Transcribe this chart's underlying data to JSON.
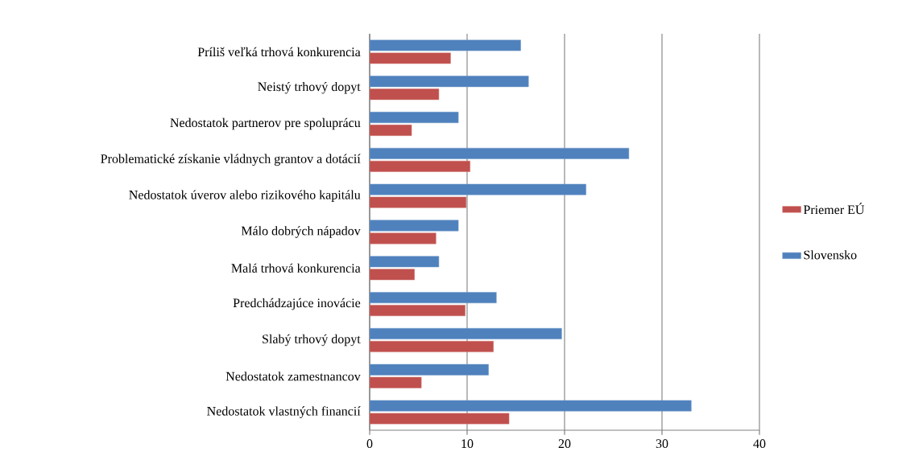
{
  "chart_data": {
    "type": "bar",
    "orientation": "horizontal",
    "categories": [
      "Príliš veľká trhová konkurencia",
      "Neistý trhový dopyt",
      "Nedostatok partnerov pre spoluprácu",
      "Problematické získanie vládnych grantov a dotácií",
      "Nedostatok úverov alebo rizikového kapitálu",
      "Málo dobrých nápadov",
      "Malá trhová konkurencia",
      "Predchádzajúce inovácie",
      "Slabý trhový dopyt",
      "Nedostatok  zamestnancov",
      "Nedostatok vlastných financií"
    ],
    "series": [
      {
        "name": "Priemer EÚ",
        "color": "#c0504d",
        "values": [
          8.3,
          7.1,
          4.3,
          10.3,
          9.9,
          6.8,
          4.6,
          9.8,
          12.7,
          5.3,
          14.3
        ]
      },
      {
        "name": "Slovensko",
        "color": "#4f81bd",
        "values": [
          15.5,
          16.3,
          9.1,
          26.6,
          22.2,
          9.1,
          7.1,
          13.0,
          19.7,
          12.2,
          33.0
        ]
      }
    ],
    "xlim": [
      0,
      40
    ],
    "xticks": [
      0,
      10,
      20,
      30,
      40
    ],
    "grid": "x",
    "legend": "right"
  }
}
